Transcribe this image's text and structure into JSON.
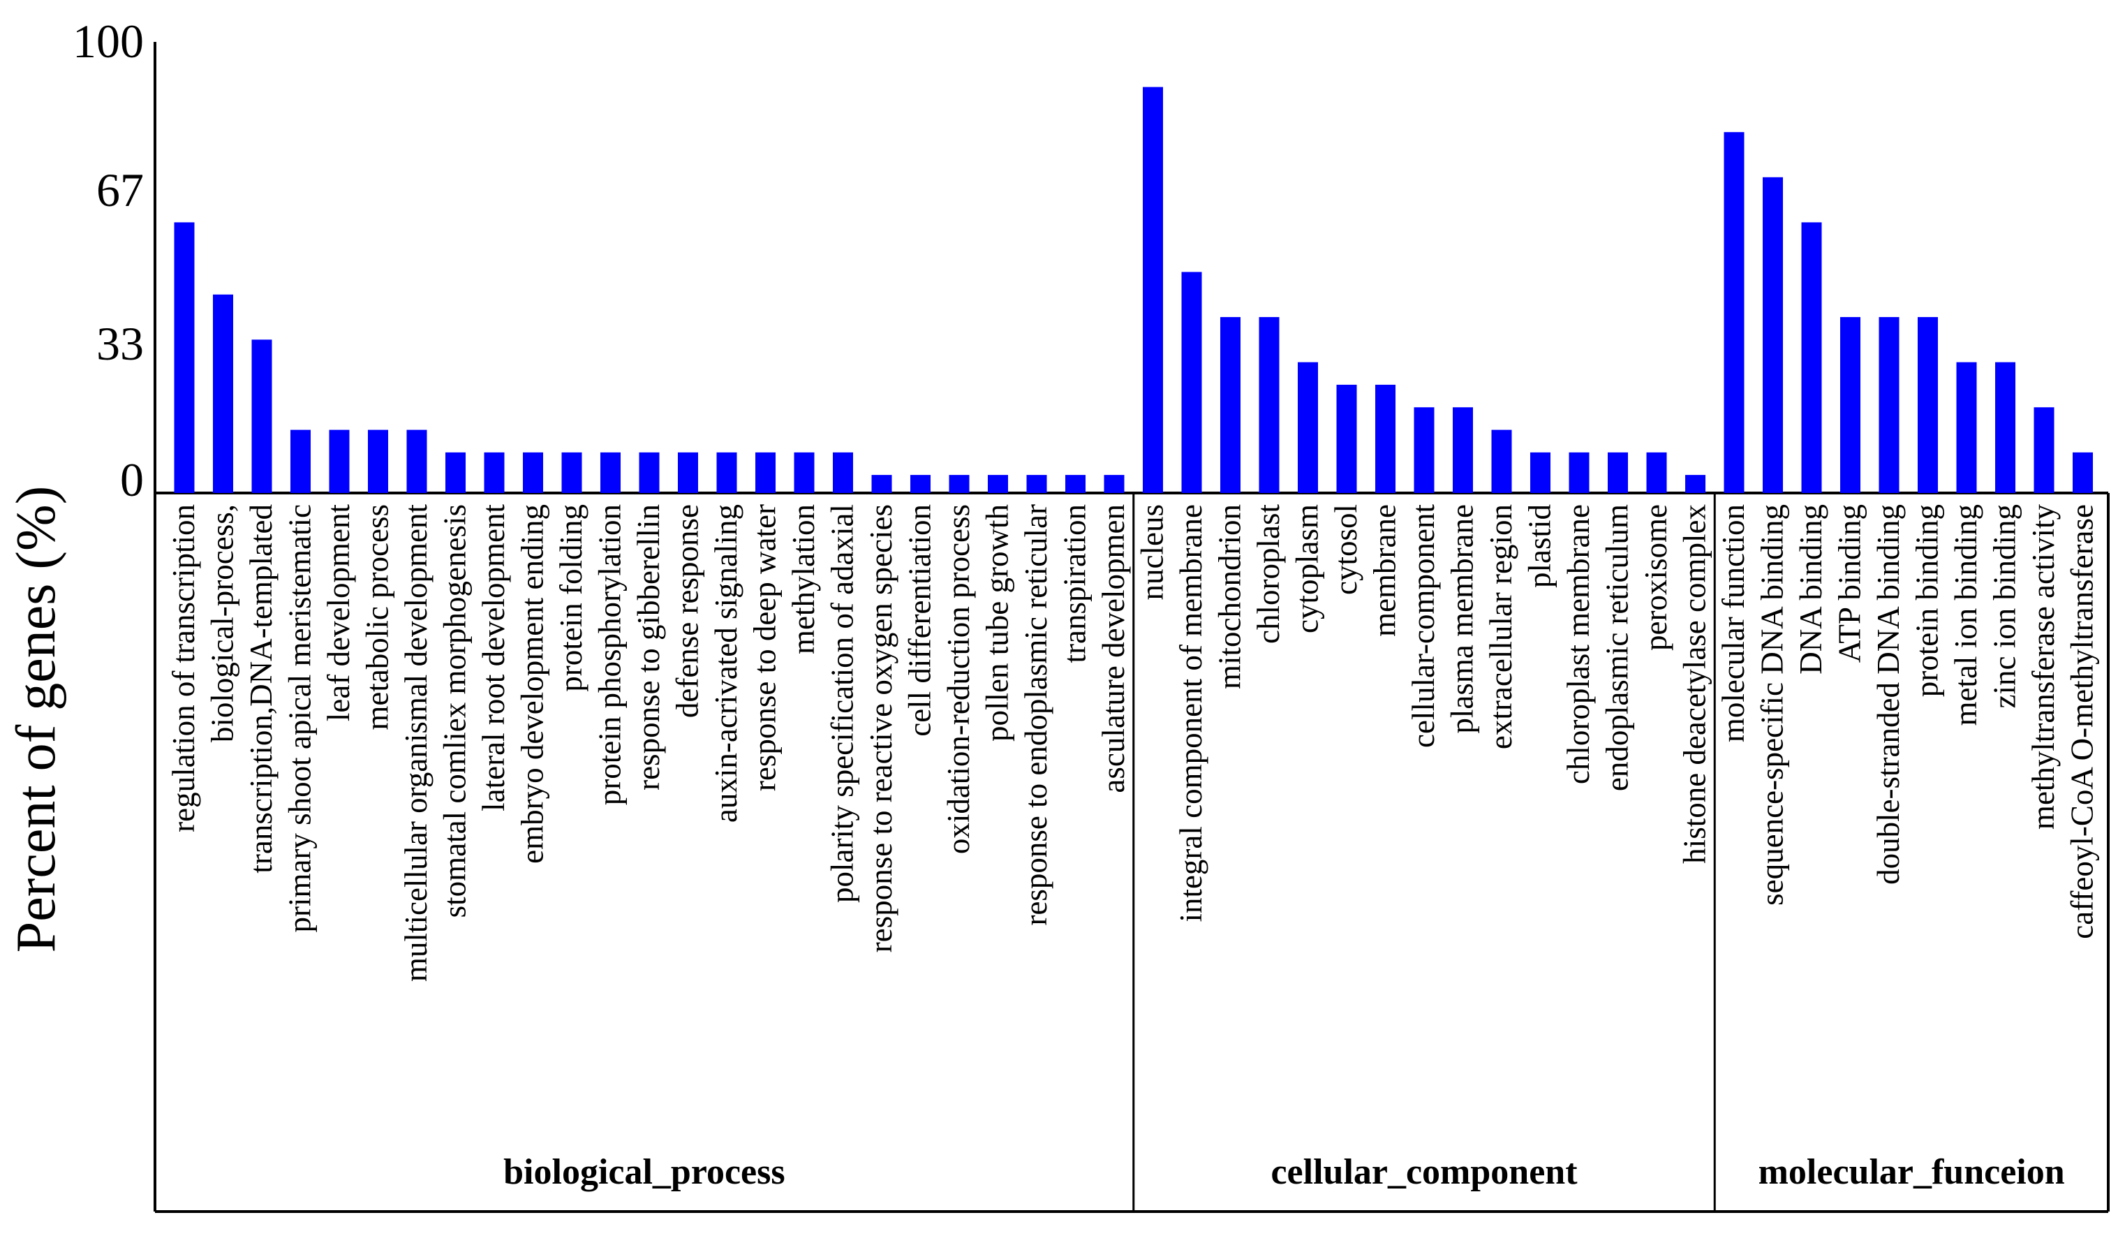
{
  "chart_data": {
    "type": "bar",
    "title": "",
    "xlabel": "",
    "ylabel": "Percent of genes (%)",
    "ylim": [
      0,
      100
    ],
    "yticks": [
      {
        "value": 0,
        "label": "0"
      },
      {
        "value": 33,
        "label": "33"
      },
      {
        "value": 67,
        "label": "67"
      },
      {
        "value": 100,
        "label": "100"
      }
    ],
    "bar_color": "#0000ff",
    "groups": [
      {
        "name": "biological_process",
        "categories": [
          "regulation of transcription",
          "biological-process,",
          "transcription,DNA-templated",
          "primary shoot apical meristematic",
          "leaf development",
          "metabolic process",
          "multicellular organismal development",
          "stomatal comliex morphogenesis",
          "lateral root development",
          "embryo development ending",
          "protein folding",
          "protein phosphorylation",
          "response to gibberellin",
          "defense response",
          "auxin-acrivated signaling",
          "response to deep water",
          "methylation",
          "polarity specification of adaxial",
          "response to reactive oxygen species",
          "cell differentiation",
          "oxidation-reduction process",
          "pollen tube growth",
          "response to endoplasmic reticular",
          "transpiration",
          "asculature developmen"
        ],
        "values": [
          60,
          44,
          34,
          14,
          14,
          14,
          14,
          9,
          9,
          9,
          9,
          9,
          9,
          9,
          9,
          9,
          9,
          9,
          4,
          4,
          4,
          4,
          4,
          4,
          4
        ]
      },
      {
        "name": "cellular_component",
        "categories": [
          "nucleus",
          "integral component of membrane",
          "mitochondrion",
          "chloroplast",
          "cytoplasm",
          "cytosol",
          "membrane",
          "cellular-component",
          "plasma membrane",
          "extracellular region",
          "plastid",
          "chloroplast membrane",
          "endoplasmic reticulum",
          "peroxisome",
          "histone deacetylase complex"
        ],
        "values": [
          90,
          49,
          39,
          39,
          29,
          24,
          24,
          19,
          19,
          14,
          9,
          9,
          9,
          9,
          4
        ]
      },
      {
        "name": "molecular_funceion",
        "categories": [
          "molecular function",
          "sequence-specific DNA binding",
          "DNA binding",
          "ATP binding",
          "double-stranded DNA binding",
          "protein binding",
          "metal ion binding",
          "zinc ion binding",
          "methyltransferase activity",
          "caffeoyl-CoA O-methyltransferase"
        ],
        "values": [
          80,
          70,
          60,
          39,
          39,
          39,
          29,
          29,
          19,
          9
        ]
      }
    ]
  }
}
